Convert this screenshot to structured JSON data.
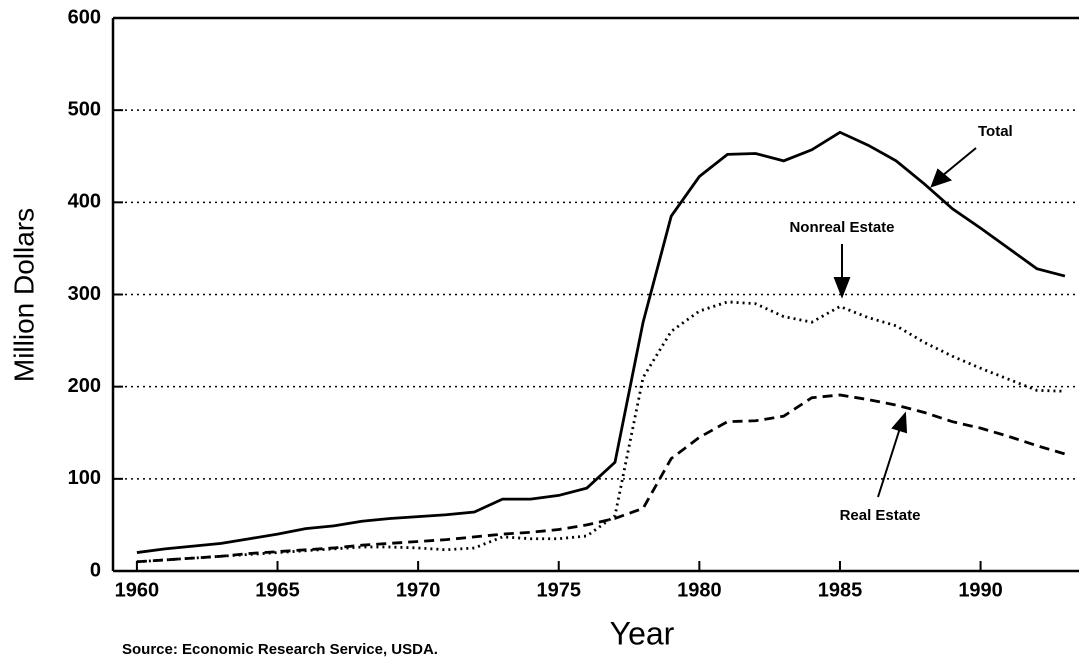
{
  "chart_data": {
    "type": "line",
    "xlabel": "Year",
    "ylabel": "Million Dollars",
    "source": "Source:  Economic Research Service, USDA.",
    "x": [
      1960,
      1961,
      1962,
      1963,
      1964,
      1965,
      1966,
      1967,
      1968,
      1969,
      1970,
      1971,
      1972,
      1973,
      1974,
      1975,
      1976,
      1977,
      1978,
      1979,
      1980,
      1981,
      1982,
      1983,
      1984,
      1985,
      1986,
      1987,
      1988,
      1989,
      1990,
      1991,
      1992,
      1993
    ],
    "series": [
      {
        "name": "Total",
        "color": "#000000",
        "dash": "solid",
        "values": [
          20,
          24,
          27,
          30,
          35,
          40,
          46,
          49,
          54,
          57,
          59,
          61,
          64,
          78,
          78,
          82,
          90,
          118,
          270,
          385,
          428,
          452,
          453,
          445,
          457,
          476,
          462,
          445,
          420,
          393,
          372,
          350,
          328,
          320
        ]
      },
      {
        "name": "Nonreal Estate",
        "color": "#000000",
        "dash": "dotted",
        "values": [
          10,
          12,
          14,
          16,
          18,
          20,
          22,
          24,
          26,
          26,
          25,
          23,
          25,
          37,
          35,
          35,
          38,
          60,
          210,
          260,
          282,
          292,
          290,
          276,
          270,
          287,
          275,
          266,
          248,
          233,
          220,
          208,
          196,
          195
        ]
      },
      {
        "name": "Real Estate",
        "color": "#000000",
        "dash": "dashed",
        "values": [
          10,
          12,
          14,
          16,
          19,
          21,
          23,
          25,
          28,
          30,
          32,
          34,
          37,
          40,
          42,
          45,
          50,
          57,
          68,
          122,
          145,
          162,
          163,
          168,
          188,
          191,
          186,
          180,
          172,
          162,
          155,
          146,
          136,
          127
        ]
      }
    ],
    "xlim": [
      1959.15,
      1993.5
    ],
    "ylim": [
      0,
      600
    ],
    "xticks": [
      1960,
      1965,
      1970,
      1975,
      1980,
      1985,
      1990
    ],
    "yticks": [
      0,
      100,
      200,
      300,
      400,
      500,
      600
    ],
    "grid": true,
    "legend": "annotations"
  }
}
